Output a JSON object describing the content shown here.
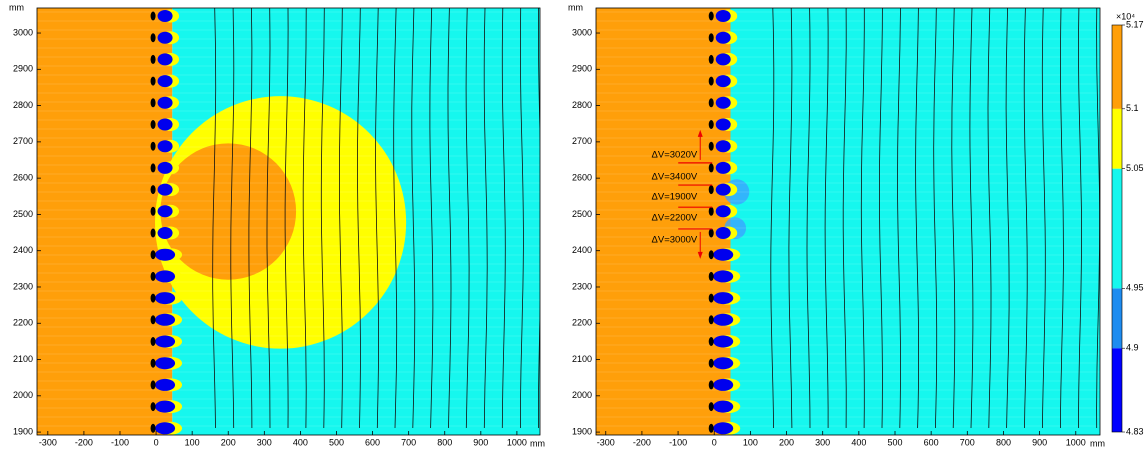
{
  "chart_data": [
    {
      "type": "contour",
      "x_unit": "mm",
      "y_unit": "mm",
      "xlim": [
        -330,
        1064
      ],
      "ylim": [
        1892,
        3069
      ],
      "xticks": [
        -300,
        -200,
        -100,
        0,
        100,
        200,
        300,
        400,
        500,
        600,
        700,
        800,
        900,
        1000
      ],
      "yticks": [
        1900,
        2000,
        2100,
        2200,
        2300,
        2400,
        2500,
        2600,
        2700,
        2800,
        2900,
        3000
      ],
      "regions": [
        {
          "shape": "rect",
          "x": [
            -330,
            45
          ],
          "color": "#ff9f0a"
        },
        {
          "shape": "rect",
          "x": [
            45,
            1064
          ],
          "color": "#16f7ee"
        },
        {
          "shape": "circle",
          "cx": 345,
          "cy": 2478,
          "r": 348,
          "color": "#ffff00"
        },
        {
          "shape": "circle",
          "cx": 200,
          "cy": 2508,
          "r": 188,
          "color": "#ff9f0a"
        }
      ]
    },
    {
      "type": "contour",
      "x_unit": "mm",
      "y_unit": "mm",
      "xlim": [
        -327,
        1067
      ],
      "ylim": [
        1892,
        3069
      ],
      "xticks": [
        -300,
        -200,
        -100,
        0,
        100,
        200,
        300,
        400,
        500,
        600,
        700,
        800,
        900,
        1000
      ],
      "yticks": [
        1900,
        2000,
        2100,
        2200,
        2300,
        2400,
        2500,
        2600,
        2700,
        2800,
        2900,
        3000
      ],
      "regions": [
        {
          "shape": "rect",
          "x": [
            -327,
            45
          ],
          "color": "#ff9f0a"
        },
        {
          "shape": "rect",
          "x": [
            45,
            1067
          ],
          "color": "#16f7ee"
        },
        {
          "shape": "circle",
          "cx": 62,
          "cy": 2562,
          "r": 35,
          "color": "#3aa4ff"
        },
        {
          "shape": "circle",
          "cx": 58,
          "cy": 2462,
          "r": 30,
          "color": "#3aa4ff"
        }
      ],
      "markers": [
        2642,
        2581,
        2520,
        2460
      ],
      "annotations": [
        {
          "text": "ΔV=3020V",
          "y": 2664
        },
        {
          "text": "ΔV=3400V",
          "y": 2603
        },
        {
          "text": "ΔV=1900V",
          "y": 2548
        },
        {
          "text": "ΔV=2200V",
          "y": 2490
        },
        {
          "text": "ΔV=3000V",
          "y": 2429
        }
      ],
      "colorbar": {
        "lim": [
          4.83,
          5.17
        ],
        "ticks": [
          4.83,
          4.9,
          4.95,
          5.05,
          5.1,
          5.17
        ],
        "colors": [
          "#0000ff",
          "#1e8cf0",
          "#16f7ee",
          "#ffff00",
          "#ff9f0a"
        ],
        "scale_label": "×10⁴"
      }
    }
  ]
}
